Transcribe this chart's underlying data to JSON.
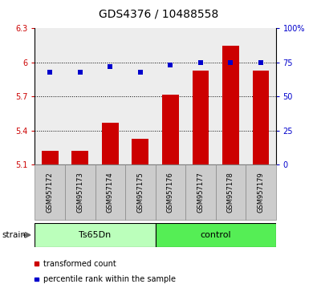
{
  "title": "GDS4376 / 10488558",
  "samples": [
    "GSM957172",
    "GSM957173",
    "GSM957174",
    "GSM957175",
    "GSM957176",
    "GSM957177",
    "GSM957178",
    "GSM957179"
  ],
  "red_values": [
    5.22,
    5.22,
    5.47,
    5.33,
    5.72,
    5.93,
    6.15,
    5.93
  ],
  "blue_values": [
    68,
    68,
    72,
    68,
    73,
    75,
    75,
    75
  ],
  "ylim_left": [
    5.1,
    6.3
  ],
  "ylim_right": [
    0,
    100
  ],
  "yticks_left": [
    5.1,
    5.4,
    5.7,
    6.0,
    6.3
  ],
  "yticks_right": [
    0,
    25,
    50,
    75,
    100
  ],
  "ytick_labels_left": [
    "5.1",
    "5.4",
    "5.7",
    "6",
    "6.3"
  ],
  "ytick_labels_right": [
    "0",
    "25",
    "50",
    "75",
    "100%"
  ],
  "dotted_lines": [
    5.4,
    5.7,
    6.0
  ],
  "bar_color": "#cc0000",
  "dot_color": "#0000cc",
  "bar_width": 0.55,
  "dot_size": 5,
  "groups": [
    {
      "label": "Ts65Dn",
      "start": 0,
      "end": 3,
      "color": "#bbffbb"
    },
    {
      "label": "control",
      "start": 4,
      "end": 7,
      "color": "#55ee55"
    }
  ],
  "strain_label": "strain",
  "legend_items": [
    {
      "color": "#cc0000",
      "label": "transformed count"
    },
    {
      "color": "#0000cc",
      "label": "percentile rank within the sample"
    }
  ],
  "sample_bg_color": "#cccccc",
  "title_fontsize": 10,
  "tick_fontsize": 7,
  "sample_fontsize": 6,
  "group_fontsize": 8,
  "legend_fontsize": 7
}
